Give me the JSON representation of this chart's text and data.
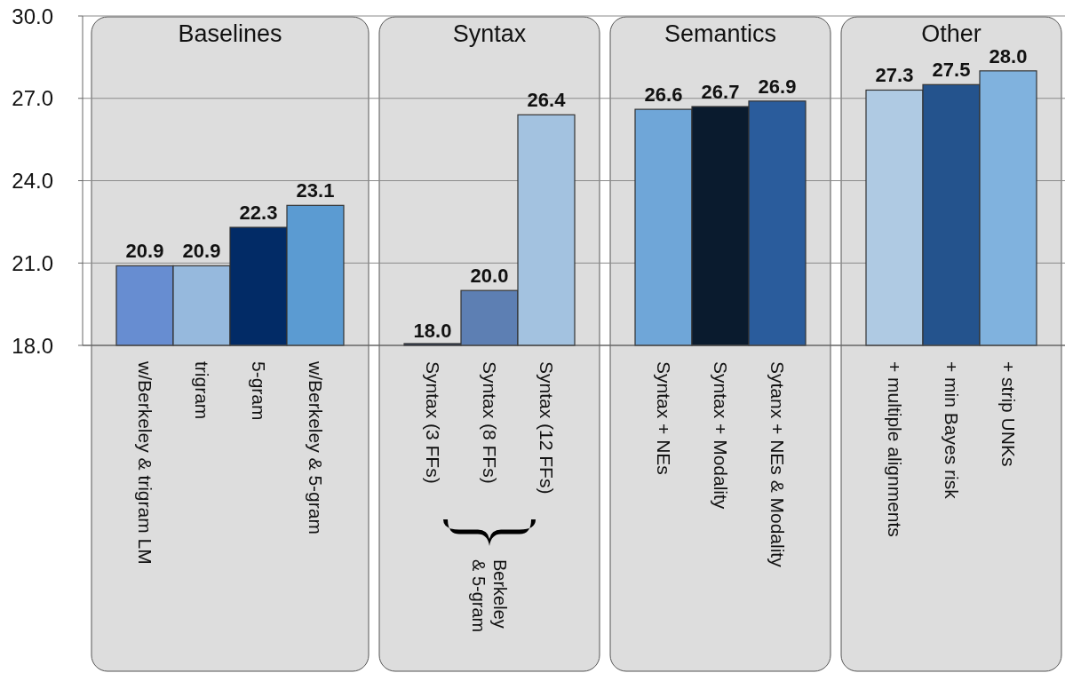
{
  "chart_data": [
    {
      "type": "bar",
      "title": "Baselines",
      "categories": [
        "w/Berkeley & trigram LM",
        "trigram",
        "5-gram",
        "w/Berkeley & 5-gram"
      ],
      "values": [
        20.9,
        20.9,
        22.3,
        23.1
      ],
      "value_labels": [
        "20.9",
        "20.9",
        "22.3",
        "23.1"
      ],
      "colors": [
        "#678dd1",
        "#96b9dd",
        "#022b66",
        "#5b9bd2"
      ],
      "ylim": [
        18,
        30
      ],
      "yticks": [
        {
          "value": 18,
          "label": "18.0"
        },
        {
          "value": 21,
          "label": "21.0"
        },
        {
          "value": 24,
          "label": "24.0"
        },
        {
          "value": 27,
          "label": "27.0"
        },
        {
          "value": 30,
          "label": "30.0"
        }
      ],
      "grid": "y"
    },
    {
      "type": "bar",
      "title": "Syntax",
      "categories": [
        "Syntax (3 FFs)",
        "Syntax (8 FFs)",
        "Syntax (12 FFs)"
      ],
      "values": [
        18.0,
        20.0,
        26.4
      ],
      "value_labels": [
        "18.0",
        "20.0",
        "26.4"
      ],
      "colors": [
        "#1c2f52",
        "#5d7fb3",
        "#a3c2e0"
      ],
      "ylim": [
        18,
        30
      ],
      "yticks": [
        18,
        21,
        24,
        27,
        30
      ],
      "grid": "y",
      "tick_labels": "x",
      "annotations": [
        "Berkeley & 5-gram"
      ]
    },
    {
      "type": "bar",
      "title": "Semantics",
      "categories": [
        "Syntax + NEs",
        "Syntax + Modality",
        "Sytanx + NEs & Modality"
      ],
      "values": [
        26.6,
        26.7,
        26.9
      ],
      "value_labels": [
        "26.6",
        "26.7",
        "26.9"
      ],
      "colors": [
        "#6fa6d8",
        "#0a1b2e",
        "#2a5c9c"
      ],
      "ylim": [
        18,
        30
      ],
      "yticks": [
        18,
        21,
        24,
        27,
        30
      ],
      "grid": "y",
      "tick_labels": "x"
    },
    {
      "type": "bar",
      "title": "Other",
      "categories": [
        "+ multiple alignments",
        "+ min Bayes risk",
        "+ strip UNKs"
      ],
      "values": [
        27.3,
        27.5,
        28.0
      ],
      "value_labels": [
        "27.3",
        "27.5",
        "28.0"
      ],
      "colors": [
        "#afcae3",
        "#24538d",
        "#80b2de"
      ],
      "ylim": [
        18,
        30
      ],
      "yticks": [
        18,
        21,
        24,
        27,
        30
      ],
      "grid": "y",
      "tick_labels": "x"
    }
  ]
}
